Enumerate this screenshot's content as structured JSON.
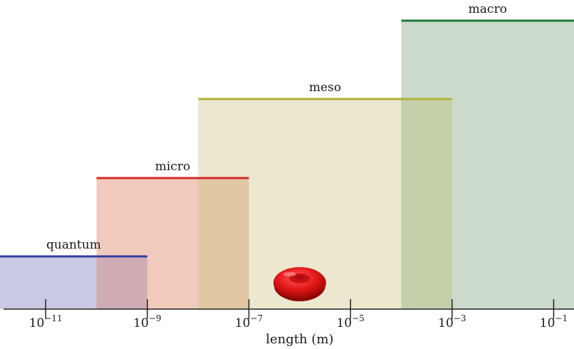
{
  "chart_data": {
    "type": "range-diagram",
    "xlabel": "length (m)",
    "scale": "log10",
    "xlim": [
      -11.9,
      -0.6
    ],
    "ticks": [
      {
        "base": "10",
        "exp": "−11",
        "value": -11
      },
      {
        "base": "10",
        "exp": "−9",
        "value": -9
      },
      {
        "base": "10",
        "exp": "−7",
        "value": -7
      },
      {
        "base": "10",
        "exp": "−5",
        "value": -5
      },
      {
        "base": "10",
        "exp": "−3",
        "value": -3
      },
      {
        "base": "10",
        "exp": "−1",
        "value": -1
      }
    ],
    "regions": [
      {
        "key": "quantum",
        "label": "quantum",
        "from": -12.1,
        "to": -9.0,
        "level": 1,
        "fill": "#c9c9e3",
        "line": "#2f3f9c"
      },
      {
        "key": "micro",
        "label": "micro",
        "from": -10.0,
        "to": -7.0,
        "level": 2,
        "fill": "#f2cabd",
        "line": "#d42a2a"
      },
      {
        "key": "meso",
        "label": "meso",
        "from": -8.0,
        "to": -3.0,
        "level": 3,
        "fill": "#ebe8cf",
        "line": "#b3b03a"
      },
      {
        "key": "macro",
        "label": "macro",
        "from": -4.0,
        "to": -0.6,
        "level": 4,
        "fill": "#ccdacb",
        "line": "#1f7a3c"
      }
    ],
    "overlaps": [
      {
        "from": -10.0,
        "to": -9.0,
        "fill": "#cfacb4"
      },
      {
        "from": -8.0,
        "to": -7.0,
        "fill": "#e2c7a4"
      },
      {
        "from": -4.0,
        "to": -3.0,
        "fill": "#c3d0aa"
      }
    ],
    "marker": {
      "name": "red-blood-cell",
      "position": -6.0,
      "color": "#d41010"
    }
  }
}
